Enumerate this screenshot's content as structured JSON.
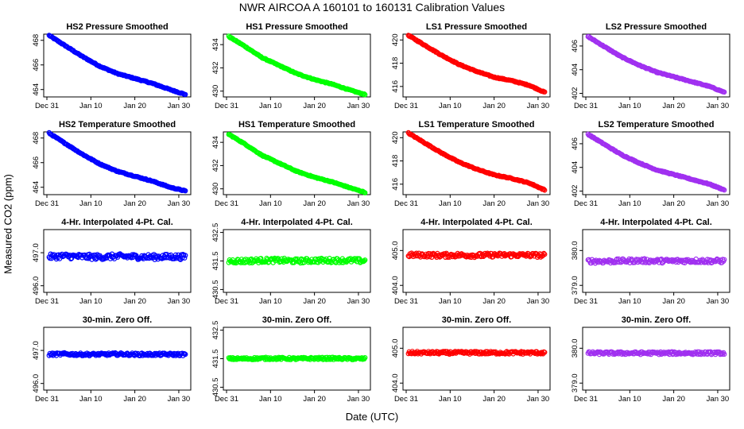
{
  "figure": {
    "title": "NWR    AIRCOA A    160101 to 160131    Calibration Values",
    "ylabel": "Measured CO2 (ppm)",
    "xlabel": "Date (UTC)"
  },
  "chart_data": [
    {
      "type": "scatter",
      "title": "HS2 Pressure Smoothed",
      "color": "#0000ff",
      "marker": "circle",
      "x_ticks": [
        "Dec 31",
        "Jan 10",
        "Jan 20",
        "Jan 30"
      ],
      "xlim": [
        0,
        32
      ],
      "ylim": [
        463.4,
        468.5
      ],
      "y_ticks": [
        "464",
        "466",
        "468"
      ],
      "series": [
        {
          "x": [
            0.5,
            4,
            8,
            12,
            16,
            20,
            24,
            28,
            31.5
          ],
          "y": [
            468.4,
            467.6,
            466.7,
            465.9,
            465.3,
            464.9,
            464.5,
            464.0,
            463.6
          ]
        }
      ]
    },
    {
      "type": "scatter",
      "title": "HS1 Pressure Smoothed",
      "color": "#00ff00",
      "marker": "circle",
      "x_ticks": [
        "Dec 31",
        "Jan 10",
        "Jan 20",
        "Jan 30"
      ],
      "xlim": [
        0,
        32
      ],
      "ylim": [
        429.5,
        434.9
      ],
      "y_ticks": [
        "430",
        "432",
        "434"
      ],
      "series": [
        {
          "x": [
            0.5,
            4,
            8,
            12,
            16,
            20,
            24,
            28,
            31.5
          ],
          "y": [
            434.7,
            433.9,
            432.9,
            432.2,
            431.5,
            431.0,
            430.6,
            430.1,
            429.7
          ]
        }
      ]
    },
    {
      "type": "scatter",
      "title": "LS1 Pressure Smoothed",
      "color": "#ff0000",
      "marker": "circle",
      "x_ticks": [
        "Dec 31",
        "Jan 10",
        "Jan 20",
        "Jan 30"
      ],
      "xlim": [
        0,
        32
      ],
      "ylim": [
        415.1,
        420.5
      ],
      "y_ticks": [
        "416",
        "418",
        "420"
      ],
      "series": [
        {
          "x": [
            0.5,
            4,
            8,
            12,
            16,
            20,
            24,
            28,
            31.5
          ],
          "y": [
            420.4,
            419.6,
            418.7,
            417.9,
            417.3,
            416.8,
            416.5,
            416.1,
            415.5
          ]
        }
      ]
    },
    {
      "type": "scatter",
      "title": "LS2 Pressure Smoothed",
      "color": "#a030f0",
      "marker": "circle",
      "x_ticks": [
        "Dec 31",
        "Jan 10",
        "Jan 20",
        "Jan 30"
      ],
      "xlim": [
        0,
        32
      ],
      "ylim": [
        401.7,
        407.0
      ],
      "y_ticks": [
        "402",
        "404",
        "406"
      ],
      "series": [
        {
          "x": [
            0.5,
            4,
            8,
            12,
            16,
            20,
            24,
            28,
            31.5
          ],
          "y": [
            406.8,
            406.0,
            405.1,
            404.4,
            403.8,
            403.4,
            403.0,
            402.6,
            402.1
          ]
        }
      ]
    },
    {
      "type": "scatter",
      "title": "HS2 Temperature Smoothed",
      "color": "#0000ff",
      "marker": "circle",
      "x_ticks": [
        "Dec 31",
        "Jan 10",
        "Jan 20",
        "Jan 30"
      ],
      "xlim": [
        0,
        32
      ],
      "ylim": [
        463.4,
        468.5
      ],
      "y_ticks": [
        "464",
        "466",
        "468"
      ],
      "series": [
        {
          "x": [
            0.5,
            4,
            8,
            12,
            16,
            20,
            24,
            28,
            31.5
          ],
          "y": [
            468.4,
            467.6,
            466.7,
            465.9,
            465.3,
            464.9,
            464.5,
            464.0,
            463.7
          ]
        }
      ]
    },
    {
      "type": "scatter",
      "title": "HS1 Temperature Smoothed",
      "color": "#00ff00",
      "marker": "circle",
      "x_ticks": [
        "Dec 31",
        "Jan 10",
        "Jan 20",
        "Jan 30"
      ],
      "xlim": [
        0,
        32
      ],
      "ylim": [
        429.5,
        434.9
      ],
      "y_ticks": [
        "430",
        "432",
        "434"
      ],
      "series": [
        {
          "x": [
            0.5,
            4,
            8,
            12,
            16,
            20,
            24,
            28,
            31.5
          ],
          "y": [
            434.7,
            433.9,
            432.9,
            432.2,
            431.5,
            431.0,
            430.6,
            430.1,
            429.7
          ]
        }
      ]
    },
    {
      "type": "scatter",
      "title": "LS1 Temperature Smoothed",
      "color": "#ff0000",
      "marker": "circle",
      "x_ticks": [
        "Dec 31",
        "Jan 10",
        "Jan 20",
        "Jan 30"
      ],
      "xlim": [
        0,
        32
      ],
      "ylim": [
        415.1,
        420.5
      ],
      "y_ticks": [
        "416",
        "418",
        "420"
      ],
      "series": [
        {
          "x": [
            0.5,
            4,
            8,
            12,
            16,
            20,
            24,
            28,
            31.5
          ],
          "y": [
            420.4,
            419.6,
            418.7,
            417.9,
            417.3,
            416.8,
            416.5,
            416.1,
            415.5
          ]
        }
      ]
    },
    {
      "type": "scatter",
      "title": "LS2 Temperature Smoothed",
      "color": "#a030f0",
      "marker": "circle",
      "x_ticks": [
        "Dec 31",
        "Jan 10",
        "Jan 20",
        "Jan 30"
      ],
      "xlim": [
        0,
        32
      ],
      "ylim": [
        401.7,
        407.0
      ],
      "y_ticks": [
        "402",
        "404",
        "406"
      ],
      "series": [
        {
          "x": [
            0.5,
            4,
            8,
            12,
            16,
            20,
            24,
            28,
            31.5
          ],
          "y": [
            406.8,
            406.0,
            405.1,
            404.4,
            403.8,
            403.4,
            403.0,
            402.6,
            402.1
          ]
        }
      ]
    },
    {
      "type": "scatter",
      "title": "4-Hr. Interpolated 4-Pt. Cal.",
      "color": "#0000ff",
      "marker": "circle",
      "x_ticks": [
        "Dec 31",
        "Jan 10",
        "Jan 20",
        "Jan 30"
      ],
      "xlim": [
        0,
        32
      ],
      "ylim": [
        495.8,
        497.7
      ],
      "y_ticks": [
        "496.0",
        "497.0"
      ],
      "series": [
        {
          "x": [
            0.5,
            4,
            8,
            12,
            16,
            20,
            24,
            28,
            31.5
          ],
          "y": [
            496.88,
            496.9,
            496.88,
            496.87,
            496.89,
            496.88,
            496.87,
            496.88,
            496.87
          ],
          "spread": 0.08
        }
      ]
    },
    {
      "type": "scatter",
      "title": "4-Hr. Interpolated 4-Pt. Cal.",
      "color": "#00ff00",
      "marker": "circle",
      "x_ticks": [
        "Dec 31",
        "Jan 10",
        "Jan 20",
        "Jan 30"
      ],
      "xlim": [
        0,
        32
      ],
      "ylim": [
        430.4,
        432.6
      ],
      "y_ticks": [
        "430.5",
        "431.5",
        "432.5"
      ],
      "series": [
        {
          "x": [
            0.5,
            4,
            8,
            12,
            16,
            20,
            24,
            28,
            31.5
          ],
          "y": [
            431.5,
            431.5,
            431.52,
            431.52,
            431.5,
            431.52,
            431.52,
            431.52,
            431.5
          ],
          "spread": 0.08
        }
      ]
    },
    {
      "type": "scatter",
      "title": "4-Hr. Interpolated 4-Pt. Cal.",
      "color": "#ff0000",
      "marker": "circle",
      "x_ticks": [
        "Dec 31",
        "Jan 10",
        "Jan 20",
        "Jan 30"
      ],
      "xlim": [
        0,
        32
      ],
      "ylim": [
        403.8,
        405.6
      ],
      "y_ticks": [
        "404.0",
        "405.0"
      ],
      "series": [
        {
          "x": [
            0.5,
            4,
            8,
            12,
            16,
            20,
            24,
            28,
            31.5
          ],
          "y": [
            404.87,
            404.87,
            404.86,
            404.87,
            404.86,
            404.87,
            404.87,
            404.87,
            404.86
          ],
          "spread": 0.06
        }
      ]
    },
    {
      "type": "scatter",
      "title": "4-Hr. Interpolated 4-Pt. Cal.",
      "color": "#a030f0",
      "marker": "circle",
      "x_ticks": [
        "Dec 31",
        "Jan 10",
        "Jan 20",
        "Jan 30"
      ],
      "xlim": [
        0,
        32
      ],
      "ylim": [
        378.8,
        380.6
      ],
      "y_ticks": [
        "379.0",
        "380.0"
      ],
      "series": [
        {
          "x": [
            0.5,
            4,
            8,
            12,
            16,
            20,
            24,
            28,
            31.5
          ],
          "y": [
            379.7,
            379.69,
            379.7,
            379.71,
            379.7,
            379.7,
            379.71,
            379.7,
            379.7
          ],
          "spread": 0.06
        }
      ]
    },
    {
      "type": "scatter",
      "title": "30-min. Zero Off.",
      "color": "#0000ff",
      "marker": "circle",
      "x_ticks": [
        "Dec 31",
        "Jan 10",
        "Jan 20",
        "Jan 30"
      ],
      "xlim": [
        0,
        32
      ],
      "ylim": [
        495.8,
        497.7
      ],
      "y_ticks": [
        "496.0",
        "497.0"
      ],
      "series": [
        {
          "x": [
            0.5,
            4,
            8,
            12,
            16,
            20,
            24,
            28,
            31.5
          ],
          "y": [
            496.88,
            496.89,
            496.88,
            496.88,
            496.89,
            496.88,
            496.88,
            496.88,
            496.88
          ],
          "spread": 0.04
        }
      ]
    },
    {
      "type": "scatter",
      "title": "30-min. Zero Off.",
      "color": "#00ff00",
      "marker": "circle",
      "x_ticks": [
        "Dec 31",
        "Jan 10",
        "Jan 20",
        "Jan 30"
      ],
      "xlim": [
        0,
        32
      ],
      "ylim": [
        430.4,
        432.6
      ],
      "y_ticks": [
        "430.5",
        "431.5",
        "432.5"
      ],
      "series": [
        {
          "x": [
            0.5,
            4,
            8,
            12,
            16,
            20,
            24,
            28,
            31.5
          ],
          "y": [
            431.5,
            431.5,
            431.51,
            431.51,
            431.5,
            431.51,
            431.51,
            431.5,
            431.5
          ],
          "spread": 0.04
        }
      ]
    },
    {
      "type": "scatter",
      "title": "30-min. Zero Off.",
      "color": "#ff0000",
      "marker": "circle",
      "x_ticks": [
        "Dec 31",
        "Jan 10",
        "Jan 20",
        "Jan 30"
      ],
      "xlim": [
        0,
        32
      ],
      "ylim": [
        403.8,
        405.6
      ],
      "y_ticks": [
        "404.0",
        "405.0"
      ],
      "series": [
        {
          "x": [
            0.5,
            4,
            8,
            12,
            16,
            20,
            24,
            28,
            31.5
          ],
          "y": [
            404.87,
            404.87,
            404.87,
            404.87,
            404.87,
            404.87,
            404.87,
            404.87,
            404.87
          ],
          "spread": 0.04
        }
      ]
    },
    {
      "type": "scatter",
      "title": "30-min. Zero Off.",
      "color": "#a030f0",
      "marker": "circle",
      "x_ticks": [
        "Dec 31",
        "Jan 10",
        "Jan 20",
        "Jan 30"
      ],
      "xlim": [
        0,
        32
      ],
      "ylim": [
        378.8,
        380.6
      ],
      "y_ticks": [
        "379.0",
        "380.0"
      ],
      "series": [
        {
          "x": [
            0.5,
            4,
            8,
            12,
            16,
            20,
            24,
            28,
            31.5
          ],
          "y": [
            379.86,
            379.86,
            379.86,
            379.86,
            379.86,
            379.86,
            379.86,
            379.86,
            379.86
          ],
          "spread": 0.04
        }
      ]
    }
  ]
}
